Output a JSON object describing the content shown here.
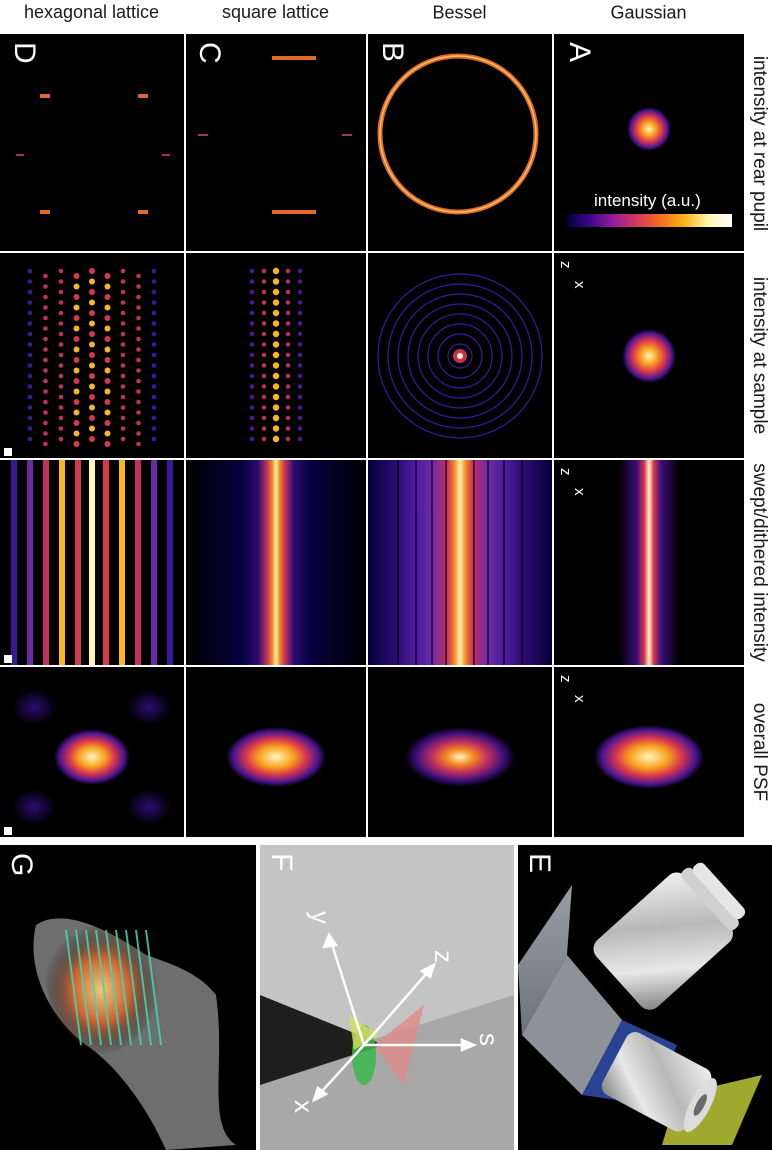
{
  "column_headers": {
    "rear_pupil": "intensity at rear pupil",
    "sample": "intensity at sample",
    "swept": "swept/dithered intensity",
    "psf": "overall PSF"
  },
  "row_labels": {
    "gaussian": "Gaussian",
    "bessel": "Bessel",
    "square": "square lattice",
    "hexagonal": "hexagonal lattice"
  },
  "panel_letters": {
    "A": "A",
    "B": "B",
    "C": "C",
    "D": "D",
    "E": "E",
    "F": "F",
    "G": "G"
  },
  "colorbar_label": "intensity (a.u.)",
  "axis_labels": {
    "z": "z",
    "x": "x"
  },
  "coordinate_labels": {
    "z": "z",
    "s": "s",
    "x": "x",
    "y": "y"
  },
  "colors": {
    "background": "#000000",
    "hot_core": "#fff4b0",
    "hot_mid": "#f7a21b",
    "hot_low": "#d8354f",
    "hot_dim": "#5b1a9c",
    "hot_floor": "#1a0a5a"
  }
}
